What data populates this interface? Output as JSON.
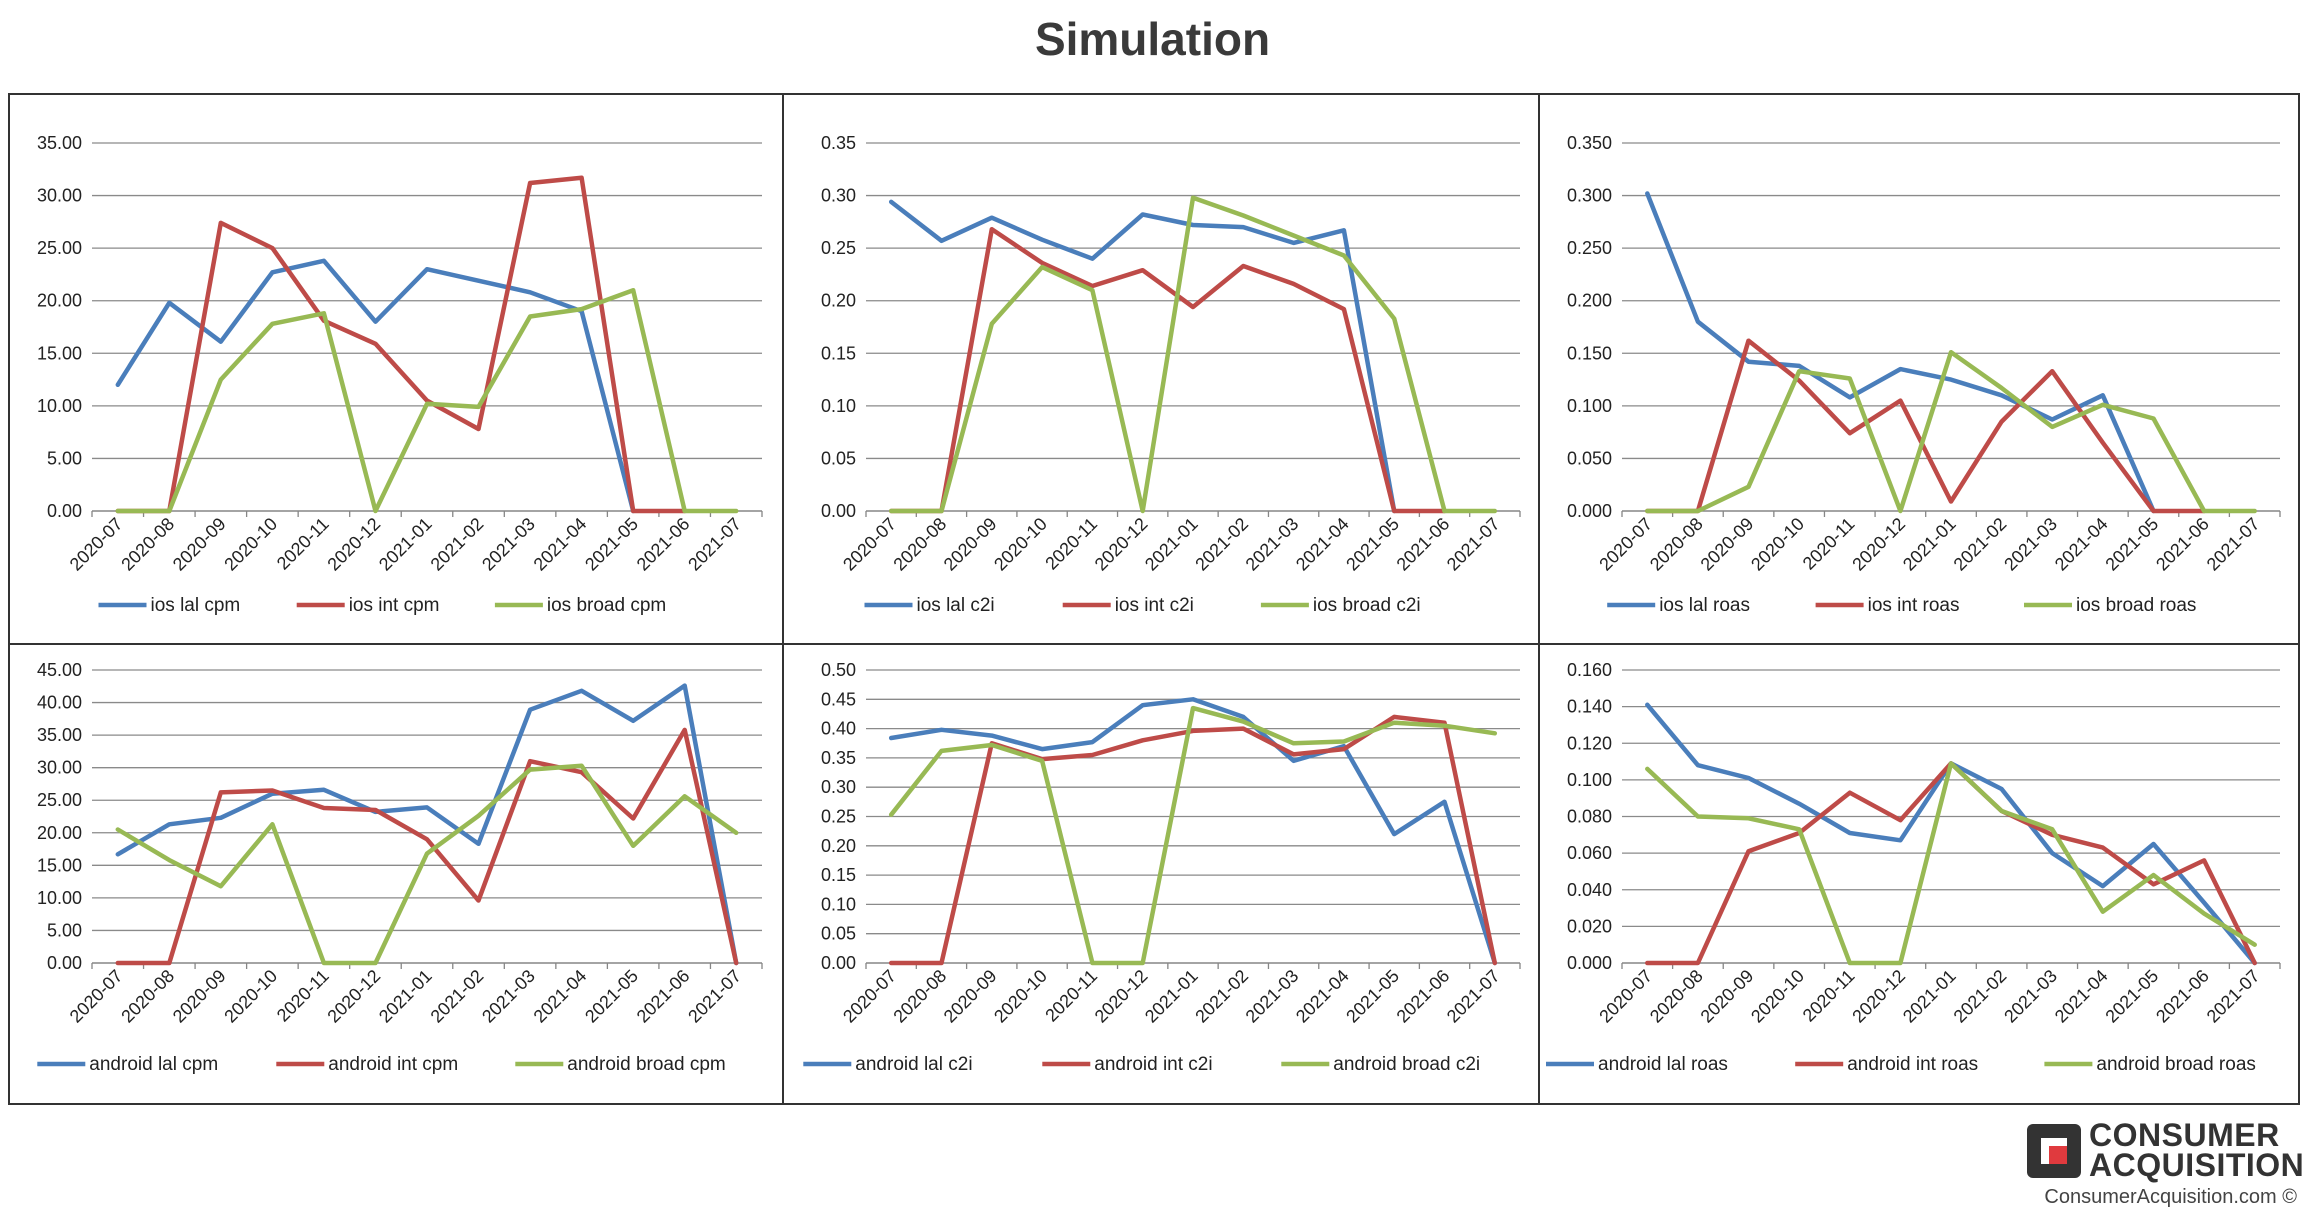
{
  "title": "Simulation",
  "brand": {
    "name_line1": "CONSUMER",
    "name_line2": "ACQUISITION",
    "url": "ConsumerAcquisition.com ©"
  },
  "colors": {
    "lal": "#4a7ebb",
    "int": "#be4b48",
    "broad": "#98b954",
    "brand_red": "#e03a3e"
  },
  "chart_data": [
    {
      "type": "line",
      "categories": [
        "2020-07",
        "2020-08",
        "2020-09",
        "2020-10",
        "2020-11",
        "2020-12",
        "2021-01",
        "2021-02",
        "2021-03",
        "2021-04",
        "2021-05",
        "2021-06",
        "2021-07"
      ],
      "yticks": [
        "0.00",
        "5.00",
        "10.00",
        "15.00",
        "20.00",
        "25.00",
        "30.00",
        "35.00"
      ],
      "ylim": [
        0,
        35
      ],
      "series": [
        {
          "name": "ios lal cpm",
          "values": [
            12,
            19.8,
            16.1,
            22.7,
            23.8,
            18,
            23,
            null,
            20.8,
            19,
            0,
            null,
            null
          ]
        },
        {
          "name": "ios int cpm",
          "values": [
            0,
            0,
            27.4,
            25,
            18.1,
            15.9,
            10.5,
            7.8,
            31.2,
            31.7,
            0,
            0,
            null
          ]
        },
        {
          "name": "ios broad cpm",
          "values": [
            0,
            0,
            12.5,
            17.8,
            18.8,
            0,
            10.2,
            9.9,
            18.5,
            19.2,
            21,
            0,
            0
          ]
        }
      ]
    },
    {
      "type": "line",
      "categories": [
        "2020-07",
        "2020-08",
        "2020-09",
        "2020-10",
        "2020-11",
        "2020-12",
        "2021-01",
        "2021-02",
        "2021-03",
        "2021-04",
        "2021-05",
        "2021-06",
        "2021-07"
      ],
      "yticks": [
        "0.00",
        "0.05",
        "0.10",
        "0.15",
        "0.20",
        "0.25",
        "0.30",
        "0.35"
      ],
      "ylim": [
        0,
        0.35
      ],
      "series": [
        {
          "name": "ios lal c2i",
          "values": [
            0.294,
            0.257,
            0.279,
            0.258,
            0.24,
            0.282,
            0.272,
            0.27,
            0.255,
            0.267,
            0,
            null,
            null
          ]
        },
        {
          "name": "ios int c2i",
          "values": [
            0,
            0,
            0.268,
            0.236,
            0.214,
            0.229,
            0.194,
            0.233,
            0.216,
            0.192,
            0,
            0,
            null
          ]
        },
        {
          "name": "ios broad c2i",
          "values": [
            0,
            0,
            0.178,
            0.232,
            0.21,
            0,
            0.298,
            0.281,
            0.262,
            0.243,
            0.183,
            0,
            0
          ]
        }
      ]
    },
    {
      "type": "line",
      "categories": [
        "2020-07",
        "2020-08",
        "2020-09",
        "2020-10",
        "2020-11",
        "2020-12",
        "2021-01",
        "2021-02",
        "2021-03",
        "2021-04",
        "2021-05",
        "2021-06",
        "2021-07"
      ],
      "yticks": [
        "0.000",
        "0.050",
        "0.100",
        "0.150",
        "0.200",
        "0.250",
        "0.300",
        "0.350"
      ],
      "ylim": [
        0,
        0.35
      ],
      "series": [
        {
          "name": "ios lal roas",
          "values": [
            0.302,
            0.18,
            0.142,
            0.138,
            0.108,
            0.135,
            0.125,
            0.11,
            0.087,
            0.11,
            0,
            null,
            null
          ]
        },
        {
          "name": "ios int roas",
          "values": [
            0,
            0,
            0.162,
            0.124,
            0.074,
            0.105,
            0.009,
            0.085,
            0.133,
            0.065,
            0,
            0,
            null
          ]
        },
        {
          "name": "ios broad roas",
          "values": [
            0,
            0,
            0.023,
            0.133,
            0.126,
            0,
            0.151,
            0.117,
            0.08,
            0.101,
            0.088,
            0,
            0
          ]
        }
      ]
    },
    {
      "type": "line",
      "categories": [
        "2020-07",
        "2020-08",
        "2020-09",
        "2020-10",
        "2020-11",
        "2020-12",
        "2021-01",
        "2021-02",
        "2021-03",
        "2021-04",
        "2021-05",
        "2021-06",
        "2021-07"
      ],
      "yticks": [
        "0.00",
        "5.00",
        "10.00",
        "15.00",
        "20.00",
        "25.00",
        "30.00",
        "35.00",
        "40.00",
        "45.00"
      ],
      "ylim": [
        0,
        45
      ],
      "series": [
        {
          "name": "android lal cpm",
          "values": [
            16.7,
            21.3,
            22.3,
            26,
            26.6,
            23.2,
            23.9,
            18.3,
            38.9,
            41.8,
            37.2,
            42.6,
            0
          ]
        },
        {
          "name": "android int cpm",
          "values": [
            0,
            0,
            26.2,
            26.5,
            23.8,
            23.5,
            19,
            9.6,
            31,
            29.3,
            22.2,
            35.8,
            0
          ]
        },
        {
          "name": "android broad cpm",
          "values": [
            20.5,
            15.8,
            11.8,
            21.3,
            0,
            0,
            16.8,
            22.6,
            29.7,
            30.3,
            18,
            25.6,
            20
          ]
        }
      ]
    },
    {
      "type": "line",
      "categories": [
        "2020-07",
        "2020-08",
        "2020-09",
        "2020-10",
        "2020-11",
        "2020-12",
        "2021-01",
        "2021-02",
        "2021-03",
        "2021-04",
        "2021-05",
        "2021-06",
        "2021-07"
      ],
      "yticks": [
        "0.00",
        "0.05",
        "0.10",
        "0.15",
        "0.20",
        "0.25",
        "0.30",
        "0.35",
        "0.40",
        "0.45",
        "0.50"
      ],
      "ylim": [
        0,
        0.5
      ],
      "series": [
        {
          "name": "android lal c2i",
          "values": [
            0.384,
            0.398,
            0.388,
            0.365,
            0.377,
            0.44,
            0.45,
            0.42,
            0.345,
            0.37,
            0.22,
            0.275,
            0
          ]
        },
        {
          "name": "android int c2i",
          "values": [
            0,
            0,
            0.375,
            0.348,
            0.355,
            0.38,
            0.396,
            0.4,
            0.356,
            0.365,
            0.42,
            0.41,
            0
          ]
        },
        {
          "name": "android broad c2i",
          "values": [
            0.253,
            0.362,
            0.372,
            0.345,
            0,
            0,
            0.435,
            0.412,
            0.375,
            0.378,
            0.41,
            0.405,
            0.392
          ]
        }
      ]
    },
    {
      "type": "line",
      "categories": [
        "2020-07",
        "2020-08",
        "2020-09",
        "2020-10",
        "2020-11",
        "2020-12",
        "2021-01",
        "2021-02",
        "2021-03",
        "2021-04",
        "2021-05",
        "2021-06",
        "2021-07"
      ],
      "yticks": [
        "0.000",
        "0.020",
        "0.040",
        "0.060",
        "0.080",
        "0.100",
        "0.120",
        "0.140",
        "0.160"
      ],
      "ylim": [
        0,
        0.16
      ],
      "series": [
        {
          "name": "android lal roas",
          "values": [
            0.141,
            0.108,
            0.101,
            0.087,
            0.071,
            0.067,
            0.109,
            0.095,
            0.06,
            0.042,
            0.065,
            0.033,
            0
          ]
        },
        {
          "name": "android int roas",
          "values": [
            0,
            0,
            0.061,
            0.071,
            0.093,
            0.078,
            0.109,
            0.083,
            0.07,
            0.063,
            0.043,
            0.056,
            0
          ]
        },
        {
          "name": "android broad roas",
          "values": [
            0.106,
            0.08,
            0.079,
            0.073,
            0,
            0,
            0.109,
            0.083,
            0.073,
            0.028,
            0.048,
            0.027,
            0.01
          ]
        }
      ]
    }
  ]
}
